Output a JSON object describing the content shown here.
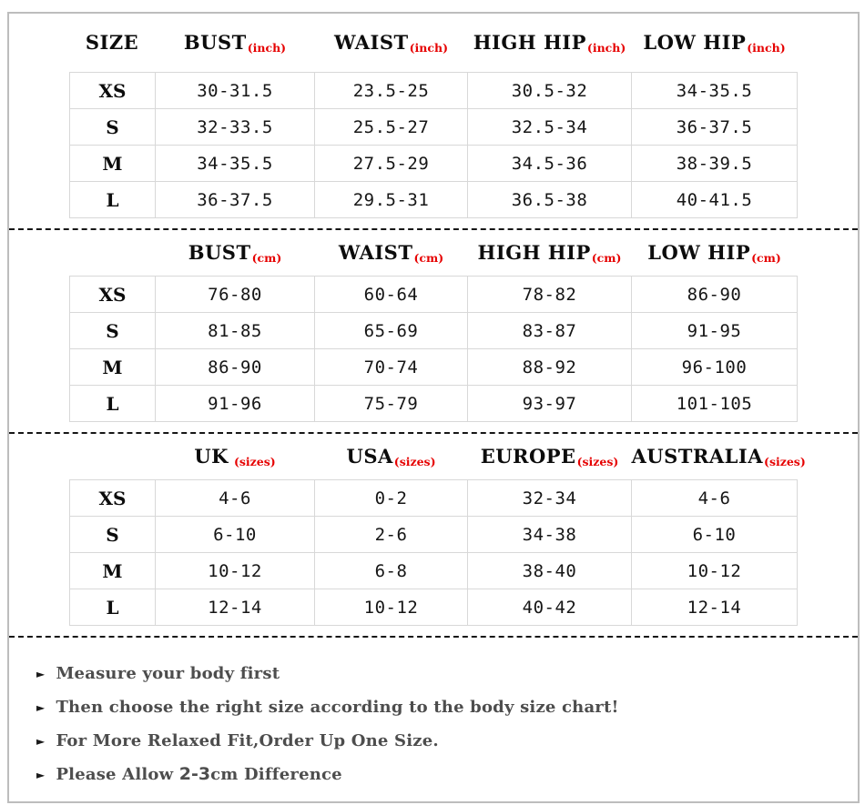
{
  "colors": {
    "unit_red": "#e60000",
    "table_border": "#d8d8d8",
    "panel_border": "#bdbdbd",
    "note_text": "#4d4d4d"
  },
  "sections": [
    {
      "id": "inch",
      "headers": [
        {
          "label": "SIZE",
          "unit": ""
        },
        {
          "label": "BUST",
          "unit": "(inch)"
        },
        {
          "label": "WAIST",
          "unit": "(inch)"
        },
        {
          "label": "HIGH HIP",
          "unit": "(inch)"
        },
        {
          "label": "LOW HIP",
          "unit": "(inch)"
        }
      ],
      "rows": [
        {
          "size": "XS",
          "values": [
            "30-31.5",
            "23.5-25",
            "30.5-32",
            "34-35.5"
          ]
        },
        {
          "size": "S",
          "values": [
            "32-33.5",
            "25.5-27",
            "32.5-34",
            "36-37.5"
          ]
        },
        {
          "size": "M",
          "values": [
            "34-35.5",
            "27.5-29",
            "34.5-36",
            "38-39.5"
          ]
        },
        {
          "size": "L",
          "values": [
            "36-37.5",
            "29.5-31",
            "36.5-38",
            "40-41.5"
          ]
        }
      ]
    },
    {
      "id": "cm",
      "headers": [
        {
          "label": "",
          "unit": ""
        },
        {
          "label": "BUST",
          "unit": "(cm)"
        },
        {
          "label": "WAIST",
          "unit": "(cm)"
        },
        {
          "label": "HIGH HIP",
          "unit": "(cm)"
        },
        {
          "label": "LOW HIP",
          "unit": "(cm)"
        }
      ],
      "rows": [
        {
          "size": "XS",
          "values": [
            "76-80",
            "60-64",
            "78-82",
            "86-90"
          ]
        },
        {
          "size": "S",
          "values": [
            "81-85",
            "65-69",
            "83-87",
            "91-95"
          ]
        },
        {
          "size": "M",
          "values": [
            "86-90",
            "70-74",
            "88-92",
            "96-100"
          ]
        },
        {
          "size": "L",
          "values": [
            "91-96",
            "75-79",
            "93-97",
            "101-105"
          ]
        }
      ]
    },
    {
      "id": "international",
      "headers": [
        {
          "label": "",
          "unit": ""
        },
        {
          "label": "UK",
          "unit": "(sizes)"
        },
        {
          "label": "USA",
          "unit": "(sizes)"
        },
        {
          "label": "EUROPE",
          "unit": "(sizes)"
        },
        {
          "label": "AUSTRALIA",
          "unit": "(sizes)"
        }
      ],
      "rows": [
        {
          "size": "XS",
          "values": [
            "4-6",
            "0-2",
            "32-34",
            "4-6"
          ]
        },
        {
          "size": "S",
          "values": [
            "6-10",
            "2-6",
            "34-38",
            "6-10"
          ]
        },
        {
          "size": "M",
          "values": [
            "10-12",
            "6-8",
            "38-40",
            "10-12"
          ]
        },
        {
          "size": "L",
          "values": [
            "12-14",
            "10-12",
            "40-42",
            "12-14"
          ]
        }
      ]
    }
  ],
  "notes": {
    "bullet_icon": "►",
    "items": [
      {
        "prefix": "Measure your body first",
        "strong": "",
        "suffix": ""
      },
      {
        "prefix": "Then choose the right size according to the body size chart!",
        "strong": "",
        "suffix": ""
      },
      {
        "prefix": "For More Relaxed Fit,Order Up One Size.",
        "strong": "",
        "suffix": ""
      },
      {
        "prefix": "Please Allow ",
        "strong": "2-3",
        "suffix": "cm Difference"
      }
    ]
  }
}
